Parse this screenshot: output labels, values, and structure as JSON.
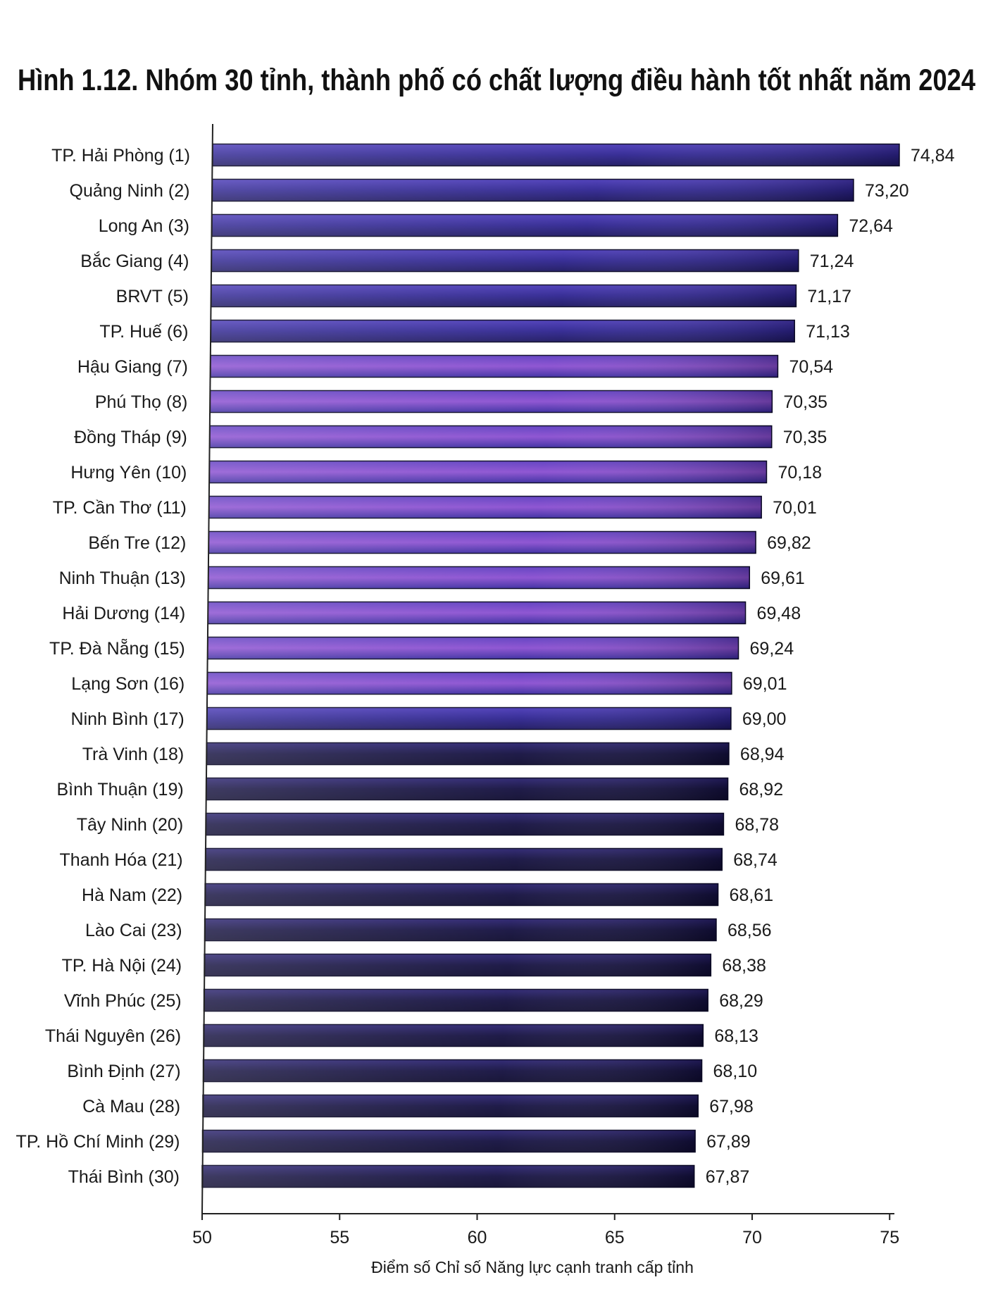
{
  "chart_data": {
    "type": "bar",
    "orientation": "horizontal",
    "title": "Hình 1.12. Nhóm 30 tỉnh, thành phố có chất lượng điều hành tốt nhất năm 2024",
    "xlabel": "Điểm số Chỉ số Năng lực cạnh tranh cấp tỉnh",
    "ylabel": "",
    "xlim": [
      50,
      75
    ],
    "xticks": [
      "50",
      "55",
      "60",
      "65",
      "70",
      "75"
    ],
    "categories": [
      "TP. Hải Phòng (1)",
      "Quảng Ninh (2)",
      "Long An (3)",
      "Bắc Giang (4)",
      "BRVT (5)",
      "TP. Huế (6)",
      "Hậu Giang (7)",
      "Phú Thọ (8)",
      "Đồng Tháp (9)",
      "Hưng Yên (10)",
      "TP. Cần Thơ (11)",
      "Bến Tre (12)",
      "Ninh Thuận (13)",
      "Hải Dương (14)",
      "TP. Đà Nẵng (15)",
      "Lạng Sơn (16)",
      "Ninh Bình (17)",
      "Trà Vinh (18)",
      "Bình Thuận (19)",
      "Tây Ninh (20)",
      "Thanh Hóa (21)",
      "Hà Nam (22)",
      "Lào Cai (23)",
      "TP. Hà Nội (24)",
      "Vĩnh Phúc (25)",
      "Thái Nguyên (26)",
      "Bình Định (27)",
      "Cà Mau (28)",
      "TP. Hồ Chí Minh (29)",
      "Thái Bình (30)"
    ],
    "values": [
      74.84,
      73.2,
      72.64,
      71.24,
      71.17,
      71.13,
      70.54,
      70.35,
      70.35,
      70.18,
      70.01,
      69.82,
      69.61,
      69.48,
      69.24,
      69.01,
      69.0,
      68.94,
      68.92,
      68.78,
      68.74,
      68.61,
      68.56,
      68.38,
      68.29,
      68.13,
      68.1,
      67.98,
      67.89,
      67.87
    ],
    "value_labels": [
      "74,84",
      "73,20",
      "72,64",
      "71,24",
      "71,17",
      "71,13",
      "70,54",
      "70,35",
      "70,35",
      "70,18",
      "70,01",
      "69,82",
      "69,61",
      "69,48",
      "69,24",
      "69,01",
      "69,00",
      "68,94",
      "68,92",
      "68,78",
      "68,74",
      "68,61",
      "68,56",
      "68,38",
      "68,29",
      "68,13",
      "68,10",
      "67,98",
      "67,89",
      "67,87"
    ],
    "grid": false,
    "legend": "none",
    "colors": {
      "bar_dark": "#1c1650",
      "bar_mid": "#3a2a9c",
      "bar_glow": "#7a40c8",
      "axis": "#222222",
      "text": "#1a1a1a"
    }
  }
}
